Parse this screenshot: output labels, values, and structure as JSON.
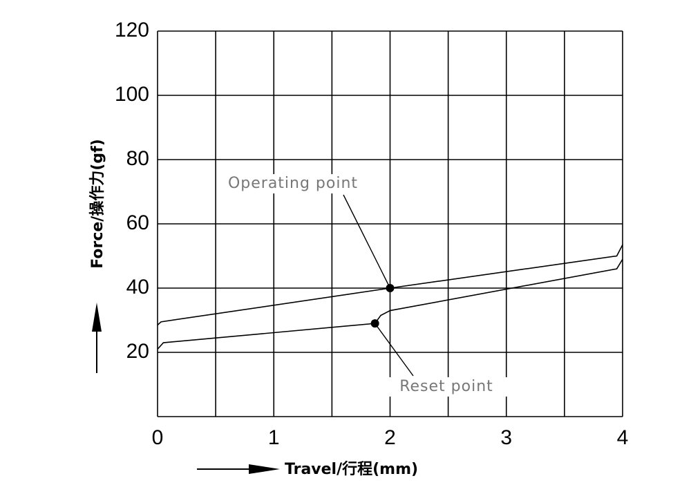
{
  "chart_data": {
    "type": "line",
    "xlabel": "Travel/行程(mm)",
    "ylabel": "Force/操作力(gf)",
    "xlim": [
      0,
      4
    ],
    "ylim": [
      0,
      120
    ],
    "xticks": [
      0,
      1,
      2,
      3,
      4
    ],
    "xminor": [
      0.5,
      1.5,
      2.5,
      3.5
    ],
    "yticks": [
      20,
      40,
      60,
      80,
      100,
      120
    ],
    "grid": true,
    "series": [
      {
        "color": "#000000",
        "x": [
          0,
          0.03,
          2,
          3.95,
          4
        ],
        "values": [
          28.5,
          29.5,
          40,
          50,
          53.5
        ]
      },
      {
        "color": "#000000",
        "x": [
          0,
          0.05,
          1.87,
          1.92,
          2.0,
          3.95,
          4
        ],
        "values": [
          21,
          23,
          29,
          31.5,
          33,
          46,
          49
        ]
      }
    ],
    "annotations": [
      {
        "text": "Operating point",
        "x": 2,
        "y": 40
      },
      {
        "text": "Reset point",
        "x": 1.87,
        "y": 29
      }
    ]
  }
}
